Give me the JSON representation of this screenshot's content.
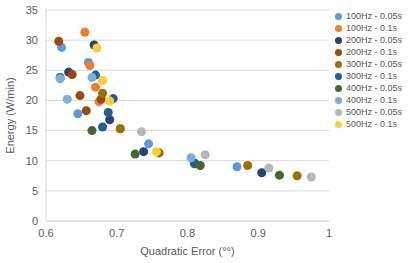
{
  "chart_data": {
    "type": "scatter",
    "x_label": "Quadratic Error (°°)",
    "y_label": "Energy (W/min)",
    "xlim": [
      0.6,
      1
    ],
    "xticks": [
      0.6,
      0.7,
      0.8,
      0.9,
      1
    ],
    "ylim": [
      0,
      35
    ],
    "yticks": [
      0,
      5,
      10,
      15,
      20,
      25,
      30,
      35
    ],
    "grid": true,
    "legend": "right",
    "marker": "circle",
    "series": [
      {
        "name": "100Hz - 0.05s",
        "color": "#5B9BD5",
        "x": [
          0.622,
          0.66,
          0.645,
          0.745,
          0.87
        ],
        "values": [
          28.8,
          26.3,
          17.8,
          12.8,
          9.0
        ]
      },
      {
        "name": "100Hz - 0.1s",
        "color": "#ED7D31",
        "x": [
          0.655,
          0.662,
          0.67,
          0.675,
          0.705
        ],
        "values": [
          31.3,
          25.8,
          22.2,
          19.8,
          15.3
        ]
      },
      {
        "name": "200Hz - 0.05s",
        "color": "#264478",
        "x": [
          0.632,
          0.668,
          0.69,
          0.738,
          0.81,
          0.905
        ],
        "values": [
          24.7,
          29.2,
          16.8,
          11.5,
          9.6,
          8.0
        ]
      },
      {
        "name": "200Hz - 0.1s",
        "color": "#9E480E",
        "x": [
          0.618,
          0.637,
          0.648,
          0.657,
          0.678
        ],
        "values": [
          29.8,
          24.3,
          20.8,
          18.3,
          20.2
        ]
      },
      {
        "name": "300Hz - 0.05s",
        "color": "#997300",
        "x": [
          0.68,
          0.705,
          0.76,
          0.885,
          0.955
        ],
        "values": [
          21.2,
          15.3,
          11.3,
          9.2,
          7.5
        ]
      },
      {
        "name": "300Hz - 0.1s",
        "color": "#255E91",
        "x": [
          0.67,
          0.68,
          0.688,
          0.695,
          0.81
        ],
        "values": [
          24.2,
          15.6,
          18.0,
          20.3,
          9.5
        ]
      },
      {
        "name": "400Hz - 0.05s",
        "color": "#43682B",
        "x": [
          0.62,
          0.665,
          0.726,
          0.818,
          0.93
        ],
        "values": [
          23.8,
          15.0,
          11.1,
          9.2,
          7.6
        ]
      },
      {
        "name": "400Hz - 0.1s",
        "color": "#7CAFDD",
        "x": [
          0.63,
          0.62,
          0.665,
          0.805
        ],
        "values": [
          20.2,
          23.6,
          23.8,
          10.5
        ]
      },
      {
        "name": "500Hz - 0.05s",
        "color": "#B7B7B7",
        "x": [
          0.735,
          0.825,
          0.915,
          0.975
        ],
        "values": [
          14.8,
          11.0,
          8.8,
          7.3
        ]
      },
      {
        "name": "500Hz - 0.1s",
        "color": "#FFCD33",
        "x": [
          0.672,
          0.68,
          0.69,
          0.756
        ],
        "values": [
          28.7,
          23.3,
          19.9,
          11.5
        ]
      }
    ]
  }
}
